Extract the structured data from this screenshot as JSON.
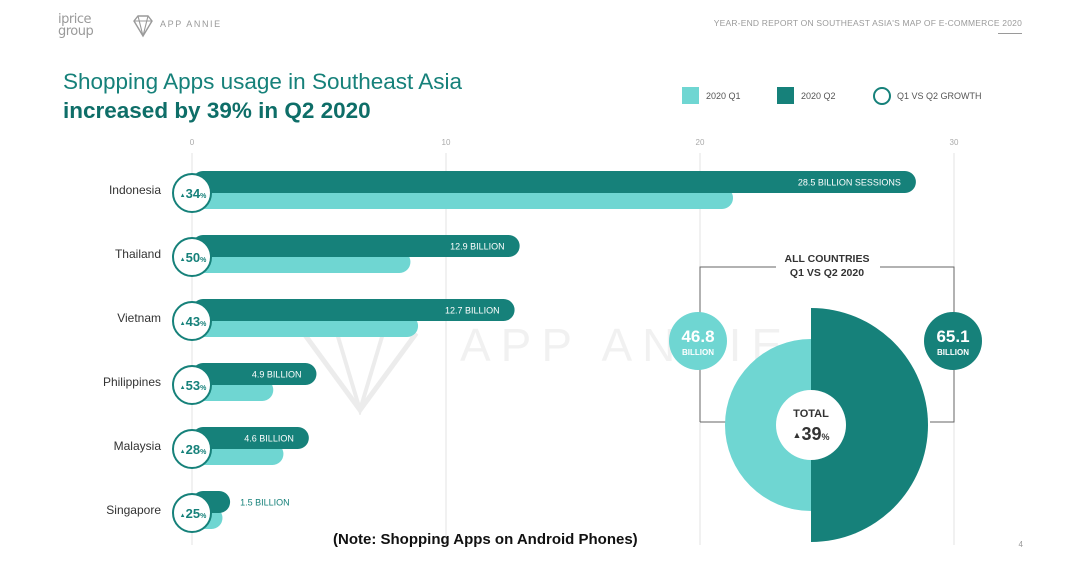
{
  "header": {
    "brand_line1": "iprice",
    "brand_line2": "group",
    "partner": "APP ANNIE",
    "report_title": "YEAR-END REPORT ON SOUTHEAST ASIA'S MAP OF E-COMMERCE 2020"
  },
  "title": {
    "line1": "Shopping Apps usage in Southeast Asia",
    "line2": "increased by 39% in Q2 2020"
  },
  "legend": {
    "q1": "2020 Q1",
    "q2": "2020 Q2",
    "growth": "Q1 VS Q2 GROWTH"
  },
  "colors": {
    "q1": "#6fd6d2",
    "q2": "#16817a",
    "growth_ring": "#16817a",
    "text": "#333333"
  },
  "chart_data": {
    "type": "bar",
    "orientation": "horizontal",
    "xlim": [
      0,
      30
    ],
    "xticks": [
      "0",
      "10",
      "20",
      "30"
    ],
    "categories": [
      "Indonesia",
      "Thailand",
      "Vietnam",
      "Philippines",
      "Malaysia",
      "Singapore"
    ],
    "series": [
      {
        "name": "2020 Q1",
        "values": [
          21.3,
          8.6,
          8.9,
          3.2,
          3.6,
          1.2
        ]
      },
      {
        "name": "2020 Q2",
        "values": [
          28.5,
          12.9,
          12.7,
          4.9,
          4.6,
          1.5
        ]
      }
    ],
    "value_labels": [
      "28.5 BILLION SESSIONS",
      "12.9 BILLION",
      "12.7 BILLION",
      "4.9 BILLION",
      "4.6 BILLION",
      "1.5 BILLION"
    ],
    "growth": [
      "34",
      "50",
      "43",
      "53",
      "28",
      "25"
    ],
    "growth_unit": "%",
    "summary": {
      "title_line1": "ALL COUNTRIES",
      "title_line2": "Q1 VS Q2 2020",
      "q1_total": 46.8,
      "q2_total": 65.1,
      "q1_value_text": "46.8",
      "q2_value_text": "65.1",
      "unit": "BILLION",
      "center_label": "TOTAL",
      "center_value": "39",
      "center_unit": "%"
    }
  },
  "footer": {
    "note": "(Note:  Shopping Apps on Android Phones)",
    "page": "4"
  }
}
